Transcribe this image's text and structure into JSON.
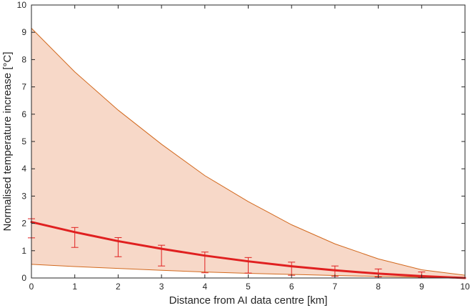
{
  "chart_data": {
    "type": "line",
    "xlabel": "Distance from AI data centre [km]",
    "ylabel": "Normalised temperature increase [°C]",
    "xlim": [
      0,
      10
    ],
    "ylim": [
      0,
      10
    ],
    "x_ticks": [
      0,
      1,
      2,
      3,
      4,
      5,
      6,
      7,
      8,
      9,
      10
    ],
    "y_ticks": [
      0,
      1,
      2,
      3,
      4,
      5,
      6,
      7,
      8,
      9,
      10
    ],
    "grid": false,
    "legend": "none",
    "band": {
      "x": [
        0,
        1,
        2,
        3,
        4,
        5,
        6,
        7,
        8,
        9,
        10
      ],
      "upper": [
        9.15,
        7.55,
        6.15,
        4.9,
        3.75,
        2.8,
        1.95,
        1.25,
        0.7,
        0.3,
        0.1
      ],
      "lower": [
        0.5,
        0.42,
        0.35,
        0.28,
        0.22,
        0.17,
        0.13,
        0.09,
        0.06,
        0.03,
        0.02
      ],
      "fill_color": "#f7d8c8",
      "edge_color": "#d2691e"
    },
    "series": [
      {
        "x": [
          0,
          1,
          2,
          3,
          4,
          5,
          6,
          7,
          8,
          9,
          10
        ],
        "values": [
          2.05,
          1.68,
          1.35,
          1.07,
          0.82,
          0.61,
          0.43,
          0.28,
          0.16,
          0.07,
          0.0
        ],
        "color": "#e02020",
        "error_low": [
          1.47,
          1.12,
          0.78,
          0.44,
          0.19,
          0.18,
          0.1,
          0.06,
          0.04,
          0.02
        ],
        "error_high": [
          2.17,
          1.85,
          1.48,
          1.2,
          0.95,
          0.75,
          0.58,
          0.44,
          0.33,
          0.22
        ]
      }
    ]
  }
}
